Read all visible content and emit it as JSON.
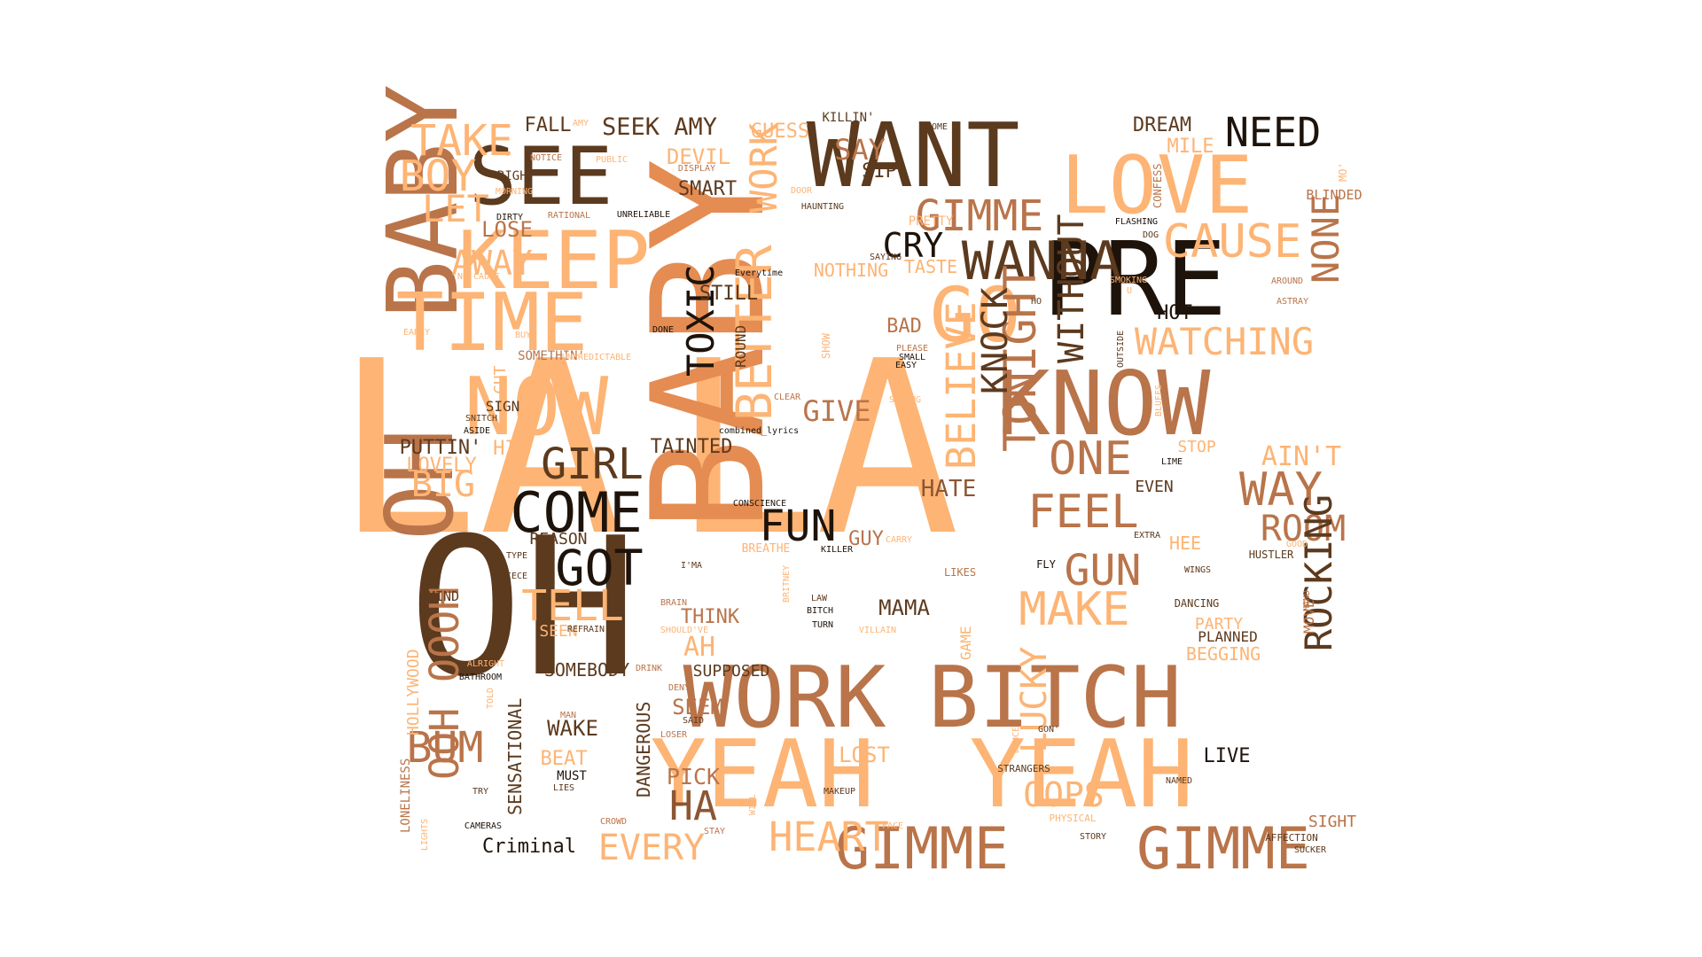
{
  "palette": {
    "light": "#fdb474",
    "peach": "#f7a265",
    "orange": "#e48c52",
    "tan": "#b9744a",
    "brown": "#8c5633",
    "dark": "#5c3a1e",
    "black": "#1e130a",
    "pale": "#ffcf8a"
  },
  "words": [
    {
      "text": "LA"
    },
    {
      "text": "LA"
    },
    {
      "text": "BABY"
    },
    {
      "text": "OH"
    },
    {
      "text": "BABY"
    },
    {
      "text": "OH"
    },
    {
      "text": "PRE"
    },
    {
      "text": "KNOW"
    },
    {
      "text": "WANT"
    },
    {
      "text": "LOVE"
    },
    {
      "text": "SEE"
    },
    {
      "text": "KEEP"
    },
    {
      "text": "TIME"
    },
    {
      "text": "NOW"
    },
    {
      "text": "WORK"
    },
    {
      "text": "BITCH"
    },
    {
      "text": "YEAH"
    },
    {
      "text": "YEAH"
    },
    {
      "text": "GIMME"
    },
    {
      "text": "GIMME"
    },
    {
      "text": "GIMME"
    },
    {
      "text": "GO"
    },
    {
      "text": "WANNA"
    },
    {
      "text": "CAUSE"
    },
    {
      "text": "NEED"
    },
    {
      "text": "TAKE"
    },
    {
      "text": "BOY"
    },
    {
      "text": "LET"
    },
    {
      "text": "LOSE"
    },
    {
      "text": "AWAY"
    },
    {
      "text": "COME"
    },
    {
      "text": "GIRL"
    },
    {
      "text": "GOT"
    },
    {
      "text": "TELL"
    },
    {
      "text": "FUN"
    },
    {
      "text": "FEEL"
    },
    {
      "text": "ONE"
    },
    {
      "text": "WAY"
    },
    {
      "text": "ROOM"
    },
    {
      "text": "ROCKING"
    },
    {
      "text": "TONIGHT"
    },
    {
      "text": "KNOCK"
    },
    {
      "text": "BELIEVE"
    },
    {
      "text": "BETTER"
    },
    {
      "text": "TOXIC"
    },
    {
      "text": "WITHOUT"
    },
    {
      "text": "WATCHING"
    },
    {
      "text": "NONE"
    },
    {
      "text": "MAKE"
    },
    {
      "text": "GUN"
    },
    {
      "text": "HEART"
    },
    {
      "text": "EVERY"
    },
    {
      "text": "HA"
    },
    {
      "text": "PICK"
    },
    {
      "text": "BUM"
    },
    {
      "text": "OOOH"
    },
    {
      "text": "OOH"
    },
    {
      "text": "LUCKY"
    },
    {
      "text": "OOPS"
    },
    {
      "text": "CRY"
    },
    {
      "text": "SAY"
    },
    {
      "text": "SIP"
    },
    {
      "text": "GUESS"
    },
    {
      "text": "FALL"
    },
    {
      "text": "SEEK AMY"
    },
    {
      "text": "DEVIL"
    },
    {
      "text": "SMART"
    },
    {
      "text": "DREAM"
    },
    {
      "text": "MILE"
    },
    {
      "text": "STILL"
    },
    {
      "text": "GIVE"
    },
    {
      "text": "BAD"
    },
    {
      "text": "HATE"
    },
    {
      "text": "MAMA"
    },
    {
      "text": "GUY"
    },
    {
      "text": "THINK"
    },
    {
      "text": "AH"
    },
    {
      "text": "SEEM"
    },
    {
      "text": "WAKE"
    },
    {
      "text": "BEAT"
    },
    {
      "text": "MUST"
    },
    {
      "text": "LOST"
    },
    {
      "text": "LIVE"
    },
    {
      "text": "SIGHT"
    },
    {
      "text": "HOT"
    },
    {
      "text": "BIG"
    },
    {
      "text": "LOVELY"
    },
    {
      "text": "PUTTIN'"
    },
    {
      "text": "HIT"
    },
    {
      "text": "TAINTED"
    },
    {
      "text": "SOMEBODY"
    },
    {
      "text": "SUPPOSED"
    },
    {
      "text": "DANGEROUS"
    },
    {
      "text": "SENSATIONAL"
    },
    {
      "text": "Criminal"
    },
    {
      "text": "MIND"
    },
    {
      "text": "HOLLYWOOD"
    },
    {
      "text": "LONELINESS"
    },
    {
      "text": "SEEN"
    },
    {
      "text": "REASON"
    },
    {
      "text": "AIN'T"
    },
    {
      "text": "STOP"
    },
    {
      "text": "EVEN"
    },
    {
      "text": "HEE"
    },
    {
      "text": "PARTY"
    },
    {
      "text": "PLANNED"
    },
    {
      "text": "BEGGING"
    },
    {
      "text": "MOVE"
    },
    {
      "text": "GAME"
    },
    {
      "text": "CUT"
    },
    {
      "text": "SIGN"
    },
    {
      "text": "ROUND"
    },
    {
      "text": "SHOW"
    },
    {
      "text": "NOTHING"
    },
    {
      "text": "TASTE"
    },
    {
      "text": "PRETTY"
    },
    {
      "text": "WORK"
    },
    {
      "text": "RIGHT"
    },
    {
      "text": "SOMETHIN'"
    },
    {
      "text": "KILLIN'"
    },
    {
      "text": "BLINDED"
    },
    {
      "text": "CONFESS"
    },
    {
      "text": "MO'"
    },
    {
      "text": "HOME"
    },
    {
      "text": "HAUNTING"
    },
    {
      "text": "FLASHING"
    },
    {
      "text": "DOG"
    },
    {
      "text": "SAYING"
    },
    {
      "text": "Everytime"
    },
    {
      "text": "SMOKING"
    },
    {
      "text": "U"
    },
    {
      "text": "AROUND"
    },
    {
      "text": "ASTRAY"
    },
    {
      "text": "HO"
    },
    {
      "text": "OUTSIDE"
    },
    {
      "text": "BLUFFS"
    },
    {
      "text": "PLEASE"
    },
    {
      "text": "SMALL"
    },
    {
      "text": "EASY"
    },
    {
      "text": "CLEAR"
    },
    {
      "text": "STRONG"
    },
    {
      "text": "combined_lyrics"
    },
    {
      "text": "CONSCIENCE"
    },
    {
      "text": "BREATHE"
    },
    {
      "text": "KILLER"
    },
    {
      "text": "CARRY"
    },
    {
      "text": "EXTRA"
    },
    {
      "text": "GOOD"
    },
    {
      "text": "HUSTLER"
    },
    {
      "text": "FLY"
    },
    {
      "text": "LIKES"
    },
    {
      "text": "WINGS"
    },
    {
      "text": "LIME"
    },
    {
      "text": "DANCING"
    },
    {
      "text": "HAND"
    },
    {
      "text": "LAW"
    },
    {
      "text": "BITCH"
    },
    {
      "text": "TURN"
    },
    {
      "text": "VILLAIN"
    },
    {
      "text": "BRITNEY"
    },
    {
      "text": "I'MA"
    },
    {
      "text": "BRAIN"
    },
    {
      "text": "SHOULD'VE"
    },
    {
      "text": "REFRAIN"
    },
    {
      "text": "TYPE"
    },
    {
      "text": "PIECE"
    },
    {
      "text": "DRINK"
    },
    {
      "text": "DENY"
    },
    {
      "text": "SAID"
    },
    {
      "text": "LOSER"
    },
    {
      "text": "MAN"
    },
    {
      "text": "LIES"
    },
    {
      "text": "TRY"
    },
    {
      "text": "CAMERAS"
    },
    {
      "text": "LIGHTS"
    },
    {
      "text": "CROWD"
    },
    {
      "text": "STAY"
    },
    {
      "text": "WILL"
    },
    {
      "text": "MAKEUP"
    },
    {
      "text": "FACE"
    },
    {
      "text": "DANCE"
    },
    {
      "text": "GON'"
    },
    {
      "text": "STRANGERS"
    },
    {
      "text": "NAMED"
    },
    {
      "text": "PHYSICAL"
    },
    {
      "text": "STORY"
    },
    {
      "text": "AFFECTION"
    },
    {
      "text": "SUCKER"
    },
    {
      "text": "ALRIGHT"
    },
    {
      "text": "BATHROOM"
    },
    {
      "text": "TOLD"
    },
    {
      "text": "SNITCH"
    },
    {
      "text": "ASIDE"
    },
    {
      "text": "EARLY"
    },
    {
      "text": "BUY"
    },
    {
      "text": "UNPREDICTABLE"
    },
    {
      "text": "DONE"
    },
    {
      "text": "NO CAUSE"
    },
    {
      "text": "DIRTY"
    },
    {
      "text": "RATIONAL"
    },
    {
      "text": "UNRELIABLE"
    },
    {
      "text": "MORNING"
    },
    {
      "text": "NOTICE"
    },
    {
      "text": "PUBLIC"
    },
    {
      "text": "DISPLAY"
    },
    {
      "text": "AMY"
    },
    {
      "text": "DOOR"
    }
  ]
}
